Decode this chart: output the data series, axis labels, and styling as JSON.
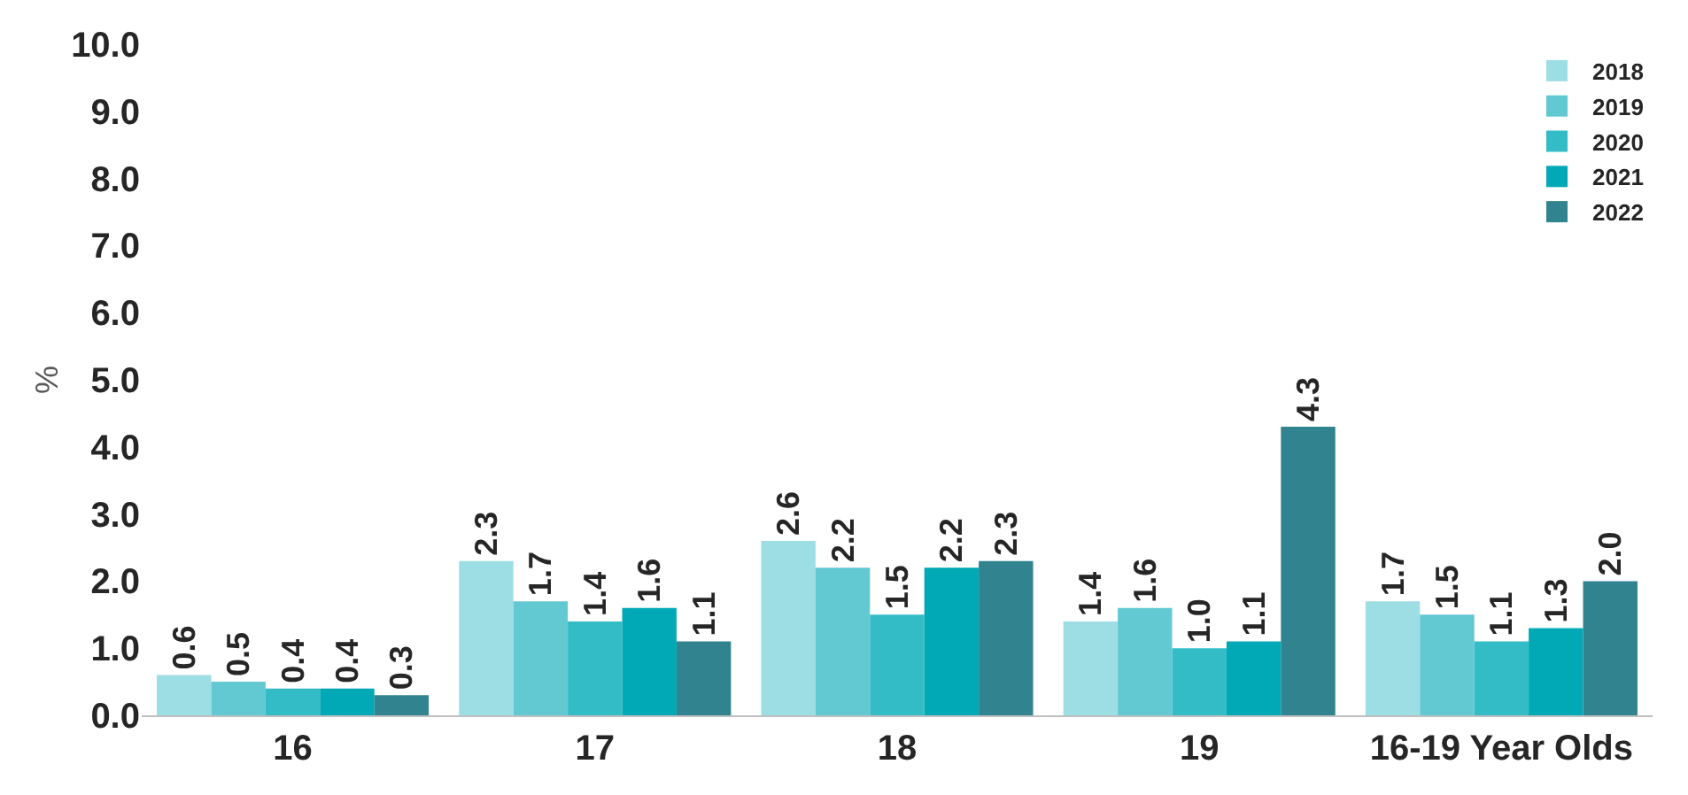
{
  "chart_data": {
    "type": "bar",
    "ylabel": "%",
    "categories": [
      "16",
      "17",
      "18",
      "19",
      "16-19 Year Olds"
    ],
    "series": [
      {
        "name": "2018",
        "color": "#9ddde4",
        "values": [
          0.6,
          2.3,
          2.6,
          1.4,
          1.7
        ],
        "value_labels": [
          "0.6",
          "2.3",
          "2.6",
          "1.4",
          "1.7"
        ]
      },
      {
        "name": "2019",
        "color": "#62c9d3",
        "values": [
          0.5,
          1.7,
          2.2,
          1.6,
          1.5
        ],
        "value_labels": [
          "0.5",
          "1.7",
          "2.2",
          "1.6",
          "1.5"
        ]
      },
      {
        "name": "2020",
        "color": "#33bcc6",
        "values": [
          0.4,
          1.4,
          1.5,
          1.0,
          1.1
        ],
        "value_labels": [
          "0.4",
          "1.4",
          "1.5",
          "1.0",
          "1.1"
        ]
      },
      {
        "name": "2021",
        "color": "#00a9b5",
        "values": [
          0.4,
          1.6,
          2.2,
          1.1,
          1.3
        ],
        "value_labels": [
          "0.4",
          "1.6",
          "2.2",
          "1.1",
          "1.3"
        ]
      },
      {
        "name": "2022",
        "color": "#31838f",
        "values": [
          0.3,
          1.1,
          2.3,
          4.3,
          2.0
        ],
        "value_labels": [
          "0.3",
          "1.1",
          "2.3",
          "4.3",
          "2.0"
        ]
      }
    ],
    "ylim": [
      0,
      10
    ],
    "yticks": [
      {
        "value": 0,
        "label": "0.0"
      },
      {
        "value": 1,
        "label": "1.0"
      },
      {
        "value": 2,
        "label": "2.0"
      },
      {
        "value": 3,
        "label": "3.0"
      },
      {
        "value": 4,
        "label": "4.0"
      },
      {
        "value": 5,
        "label": "5.0"
      },
      {
        "value": 6,
        "label": "6.0"
      },
      {
        "value": 7,
        "label": "7.0"
      },
      {
        "value": 8,
        "label": "8.0"
      },
      {
        "value": 9,
        "label": "9.0"
      },
      {
        "value": 10,
        "label": "10.0"
      }
    ],
    "grid": false,
    "legend": "top right"
  }
}
